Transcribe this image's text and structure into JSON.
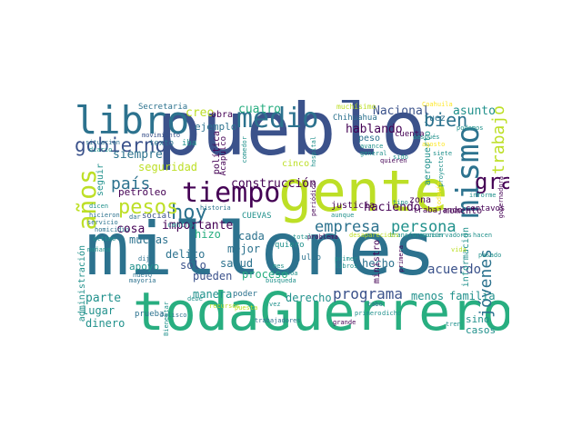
{
  "palette": {
    "purple": "#440154",
    "indigo": "#3b528b",
    "blue": "#2c728e",
    "teal": "#21918c",
    "green": "#28ae80",
    "lime": "#5ec962",
    "yellow": "#bddf26",
    "light_yellow": "#fde725"
  },
  "words": {
    "millones": "millones",
    "pueblo": "pueblo",
    "todaGuerrero": "todaGuerrero",
    "gente": "gente",
    "libro": "libro",
    "medio": "medio",
    "mismo": "mismo",
    "tiempo": "tiempo",
    "gobierno": "gobierno",
    "anos": "años",
    "hoy": "hoy",
    "pesos": "pesos",
    "bien": "bien",
    "gran": "gran",
    "empresa": "empresa",
    "persona": "persona",
    "trabajo": "trabajo",
    "pais": "país",
    "jovenes": "jóvenes",
    "programa": "programa",
    "acuerdo": "acuerdo",
    "nacional": "Nacional",
    "asunto": "asunto",
    "creo": "creo",
    "cuatro": "cuatro",
    "siempre": "siempre",
    "seguridad": "seguridad",
    "construccion": "construcción",
    "haciendo": "haciendo",
    "hablando": "hablando",
    "importante": "importante",
    "cosa": "cosa",
    "muchas": "muchas",
    "hizo": "hizo",
    "cada": "cada",
    "mejor": "mejor",
    "delito": "delito",
    "salud": "salud",
    "solo": "sólo",
    "pueden": "pueden",
    "proceso": "proceso",
    "apoyo": "apoyo",
    "parte": "parte",
    "manera": "manera",
    "derecho": "derecho",
    "menos": "menos",
    "familia": "familia",
    "lugar": "lugar",
    "dinero": "dinero",
    "hecho": "hecho",
    "sino": "sino",
    "casos": "casos",
    "informacion": "información",
    "momento": "momento",
    "zona": "zona",
    "justicia": "justicia",
    "ejemplo": "ejemplo",
    "obra": "obra",
    "politica": "política",
    "juez": "juez",
    "peso": "peso",
    "cuenta": "cuenta",
    "aeropuerto": "aeropuerto",
    "chihuahua": "Chihuahua",
    "seguir": "seguir",
    "administracion": "administración",
    "petroleo": "petróleo",
    "social": "social",
    "cuevas": "CUEVAS",
    "ministro": "ministro",
    "cinco": "cinco",
    "trabajando": "trabajando",
    "centavos": "centavos",
    "secretaria": "Secretaria",
    "acapulco": "Acapulco",
    "quiero": "quiero",
    "julio": "julio",
    "poder": "poder",
    "texto": "texto",
    "iba": "iba",
    "centro": "centro",
    "prueba": "prueba",
    "muchisimo": "muchísimo",
    "movimiento": "movimiento",
    "coahuila": "Coahuila",
    "despues": "después",
    "podemos": "podemos",
    "agosto": "agosto",
    "siete": "siete",
    "sido": "sido",
    "avance": "avance",
    "general": "general",
    "quieren": "quieren",
    "proyecto": "proyecto",
    "periodico": "periódico",
    "todavia": "todavía",
    "informe": "informe",
    "gobernadora": "gobernadora",
    "nuevo": "nuevo",
    "mayoria": "mayoría",
    "jalisco": "Jalisco",
    "trabajadores": "trabajadores",
    "busqueda": "búsqueda",
    "sinaloa": "Sinaloa",
    "transformacion": "transformación",
    "conservadores": "conservadores",
    "desaparecidos": "desaparecidos",
    "recursos": "recursos",
    "historia": "historia",
    "hicieron": "hicieron",
    "servicio": "servicio",
    "homicidio": "homicidio",
    "manana": "mañana",
    "dijo": "dijo",
    "dicen": "dicen",
    "ultimo": "último",
    "problema": "problema",
    "aunque": "aunque",
    "tipo": "tipo",
    "primer": "primer",
    "libros": "libros",
    "pasado": "pasado",
    "hacen": "hacen",
    "vida": "vida",
    "primera": "primera",
    "dicho": "dicho",
    "grande": "grande",
    "tren": "tren",
    "cabo": "cabo",
    "primero": "primero",
    "debe": "debe",
    "puesta": "puesta",
    "vez": "vez",
    "mes": "mes",
    "total": "total",
    "dar": "dar",
    "bienestar": "Bienestar",
    "ciudad": "ciudad",
    "hospital": "hospital",
    "diario": "diario",
    "situacion": "situación",
    "gobernador": "gobernador",
    "maestro": "maestro",
    "comedor": "comedor",
    "sistema": "sistema",
    "pasado2": "pasado"
  }
}
